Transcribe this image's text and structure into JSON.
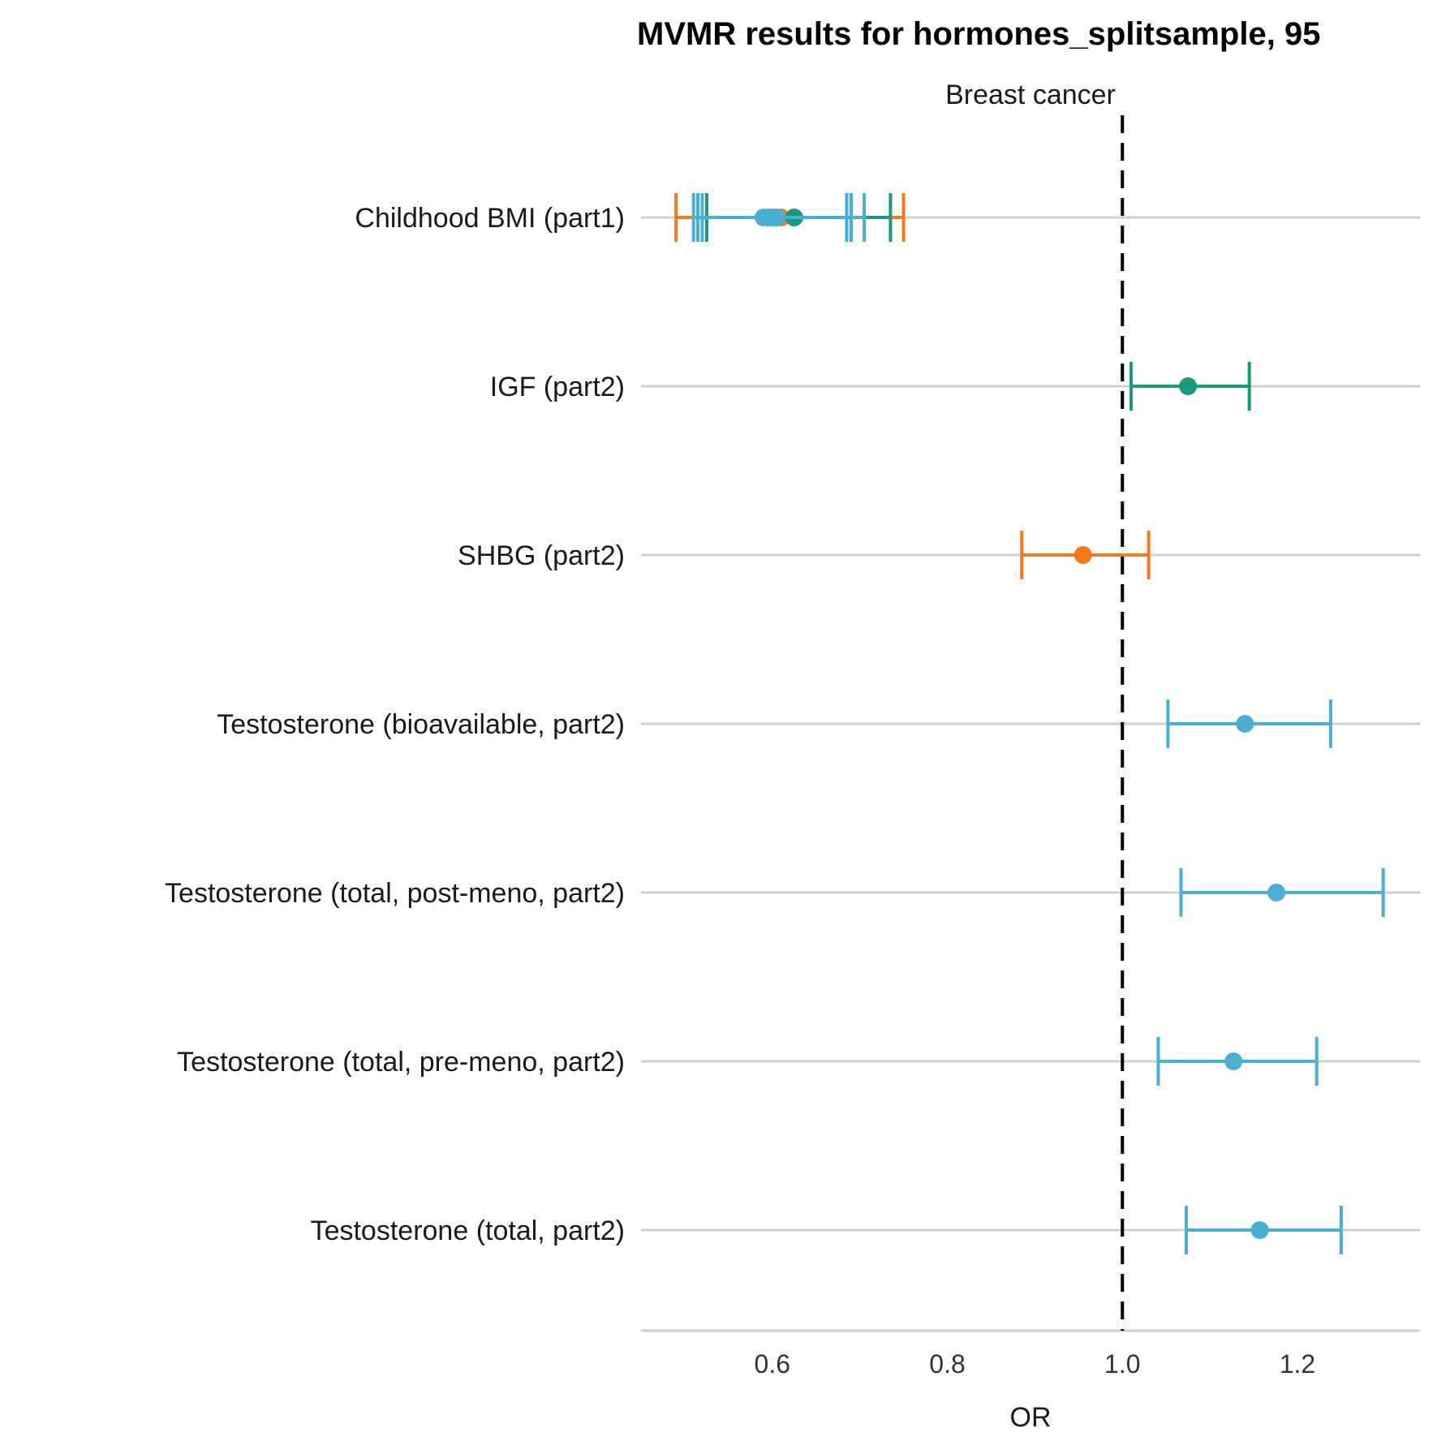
{
  "chart_data": {
    "type": "forest",
    "title": "MVMR results for hormones_splitsample, 95",
    "facet_label": "Breast cancer",
    "xlabel": "OR",
    "ylabel": "",
    "xlim": [
      0.45,
      1.34
    ],
    "x_ticks": [
      0.6,
      0.8,
      1.0,
      1.2
    ],
    "x_tick_labels": [
      "0.6",
      "0.8",
      "1.0",
      "1.2"
    ],
    "reference_line": 1.0,
    "grid": "horizontal",
    "categories": [
      "Childhood BMI (part1)",
      "IGF (part2)",
      "SHBG (part2)",
      "Testosterone (bioavailable, part2)",
      "Testosterone (total, post-meno, part2)",
      "Testosterone (total, pre-meno, part2)",
      "Testosterone (total, part2)"
    ],
    "estimates": [
      {
        "category": 0,
        "color": "#f47a1f",
        "or": 0.61,
        "lo": 0.49,
        "hi": 0.75
      },
      {
        "category": 0,
        "color": "#1a9a7a",
        "or": 0.625,
        "lo": 0.525,
        "hi": 0.735
      },
      {
        "category": 0,
        "color": "#4bafd1",
        "or": 0.59,
        "lo": 0.51,
        "hi": 0.685
      },
      {
        "category": 0,
        "color": "#4bafd1",
        "or": 0.595,
        "lo": 0.515,
        "hi": 0.69
      },
      {
        "category": 0,
        "color": "#4bafd1",
        "or": 0.6,
        "lo": 0.515,
        "hi": 0.705
      },
      {
        "category": 0,
        "color": "#4bafd1",
        "or": 0.605,
        "lo": 0.52,
        "hi": 0.69
      },
      {
        "category": 1,
        "color": "#1a9a7a",
        "or": 1.075,
        "lo": 1.01,
        "hi": 1.145
      },
      {
        "category": 2,
        "color": "#f47a1f",
        "or": 0.955,
        "lo": 0.885,
        "hi": 1.03
      },
      {
        "category": 3,
        "color": "#4bafd1",
        "or": 1.14,
        "lo": 1.052,
        "hi": 1.238
      },
      {
        "category": 4,
        "color": "#4bafd1",
        "or": 1.176,
        "lo": 1.067,
        "hi": 1.298
      },
      {
        "category": 5,
        "color": "#4bafd1",
        "or": 1.127,
        "lo": 1.041,
        "hi": 1.222
      },
      {
        "category": 6,
        "color": "#4bafd1",
        "or": 1.157,
        "lo": 1.073,
        "hi": 1.25
      }
    ]
  }
}
